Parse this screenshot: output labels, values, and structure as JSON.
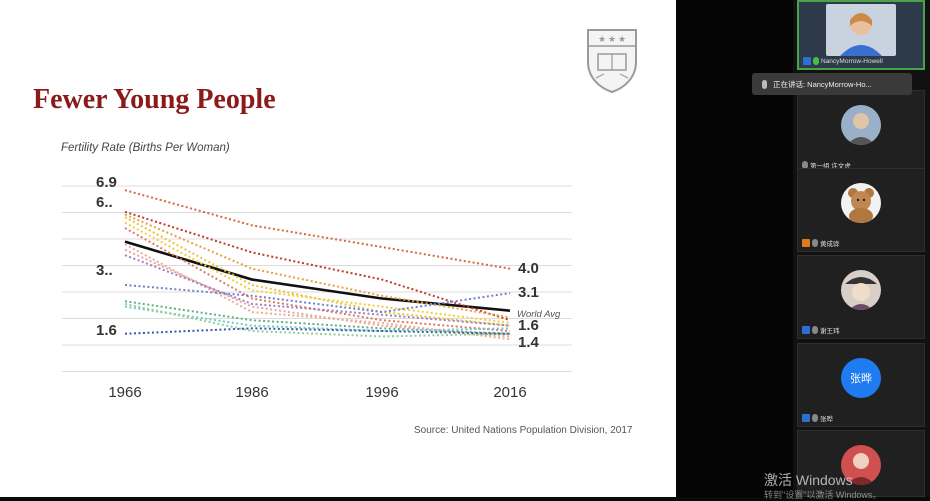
{
  "slide": {
    "title": "Fewer Young People",
    "subtitle": "Fertility Rate (Births Per Woman)",
    "source": "Source: United Nations Population Division, 2017",
    "logo_icon": "university-shield-icon"
  },
  "chart_data": {
    "type": "line",
    "title": "Fewer Young People",
    "ylabel": "Fertility Rate (Births Per Woman)",
    "categories": [
      "1966",
      "1986",
      "1996",
      "2016"
    ],
    "ylim": [
      1.0,
      7.2
    ],
    "start_labels": [
      "6.9",
      "6..",
      "3..",
      "1.6"
    ],
    "end_labels": [
      "4.0",
      "3.1",
      "1.6",
      "1.4"
    ],
    "annotation": "World Avg",
    "series": [
      {
        "name": "World Avg",
        "values": [
          5.0,
          3.6,
          2.9,
          2.45
        ],
        "color": "#111111",
        "style": "solid"
      },
      {
        "values": [
          6.9,
          5.6,
          4.8,
          4.0
        ],
        "color": "#d46a3a",
        "style": "dotted"
      },
      {
        "values": [
          6.1,
          4.6,
          3.6,
          2.1
        ],
        "color": "#c0392b",
        "style": "dotted"
      },
      {
        "values": [
          6.0,
          4.0,
          3.0,
          2.2
        ],
        "color": "#e8a13a",
        "style": "dotted"
      },
      {
        "values": [
          5.9,
          3.4,
          2.4,
          1.9
        ],
        "color": "#e8c23a",
        "style": "dotted"
      },
      {
        "values": [
          5.7,
          3.2,
          2.6,
          2.0
        ],
        "color": "#f0d040",
        "style": "dotted"
      },
      {
        "values": [
          5.5,
          2.9,
          2.1,
          1.7
        ],
        "color": "#e07a5a",
        "style": "dotted"
      },
      {
        "values": [
          4.7,
          2.6,
          1.9,
          1.5
        ],
        "color": "#f0a0a0",
        "style": "dotted"
      },
      {
        "values": [
          4.9,
          2.4,
          2.0,
          1.4
        ],
        "color": "#e8b090",
        "style": "dotted"
      },
      {
        "values": [
          4.5,
          2.7,
          2.3,
          1.9
        ],
        "color": "#9a80c0",
        "style": "dotted"
      },
      {
        "values": [
          3.4,
          3.0,
          2.4,
          3.1
        ],
        "color": "#7080c8",
        "style": "dotted"
      },
      {
        "values": [
          2.8,
          2.1,
          1.8,
          1.6
        ],
        "color": "#60b080",
        "style": "dotted"
      },
      {
        "values": [
          2.6,
          1.9,
          1.7,
          1.8
        ],
        "color": "#70c8d0",
        "style": "dotted"
      },
      {
        "values": [
          2.7,
          1.7,
          1.5,
          1.6
        ],
        "color": "#90d090",
        "style": "dotted"
      },
      {
        "values": [
          1.6,
          1.8,
          1.7,
          1.6
        ],
        "color": "#3a5aa8",
        "style": "dotted"
      }
    ]
  },
  "meeting": {
    "speaking_label": "正在讲话: NancyMorrow-Ho...",
    "participants": [
      {
        "name": "NancyMorrow-Howell",
        "avatar": "video-feed",
        "active": true
      },
      {
        "name": "第一组 许文虎",
        "avatar": "portrait-avatar",
        "active": false
      },
      {
        "name": "黄成骅",
        "avatar": "teddy-bear-avatar",
        "active": false
      },
      {
        "name": "谢王玮",
        "avatar": "character-avatar",
        "active": false
      },
      {
        "name": "张晔",
        "avatar_text": "张晔",
        "avatar_color": "#1f7bf0",
        "active": false
      },
      {
        "name": "",
        "avatar": "photo-avatar",
        "active": false
      }
    ]
  },
  "os": {
    "watermark": "激活 Windows",
    "watermark_sub": "转到\"设置\"以激活 Windows。"
  }
}
